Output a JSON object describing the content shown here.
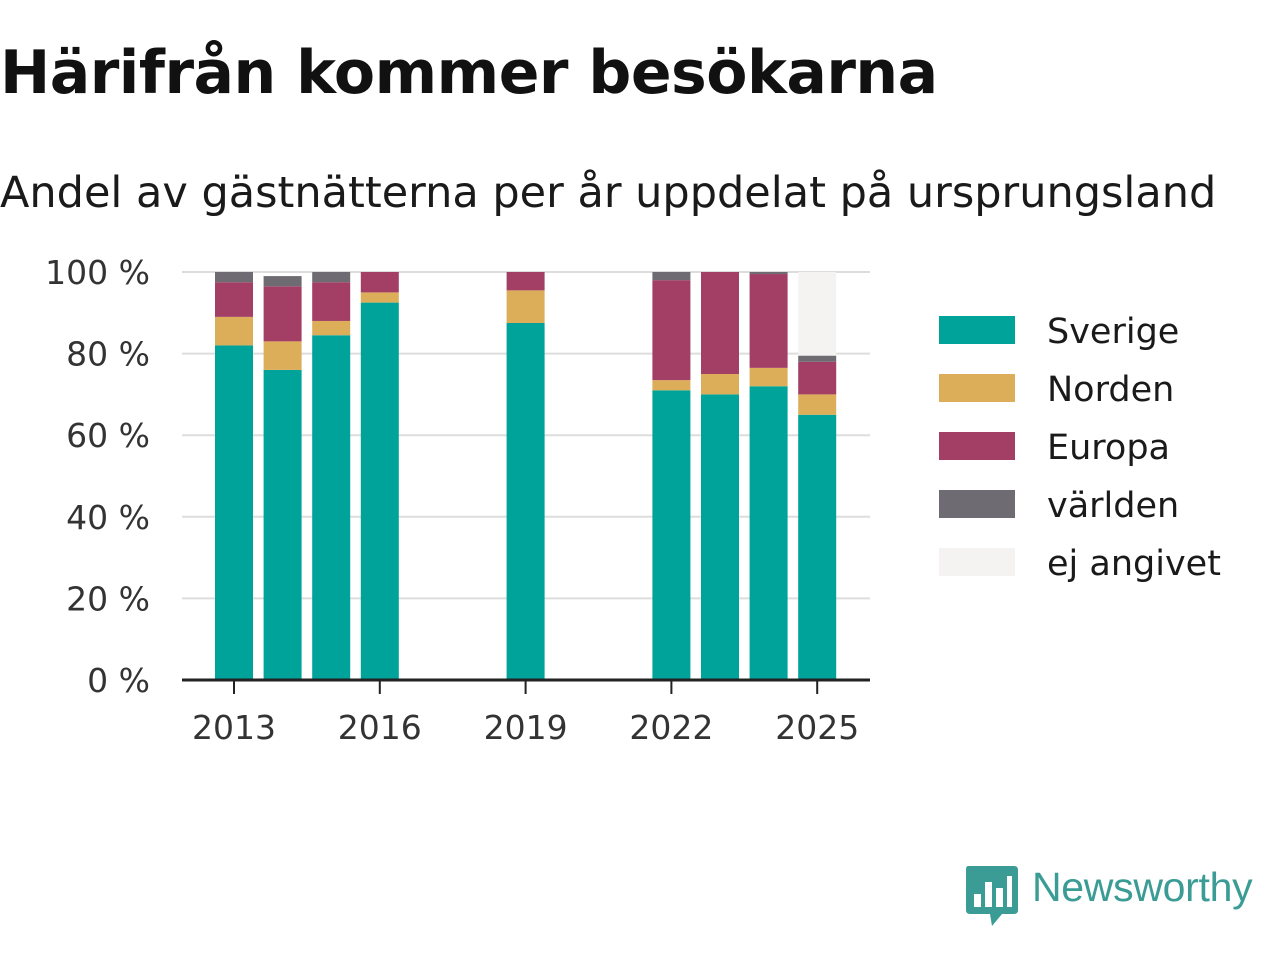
{
  "chart_data": {
    "type": "bar",
    "stacked": true,
    "title": "Härifrån kommer besökarna",
    "subtitle": "Andel av gästnätterna per år uppdelat på ursprungsland",
    "categories": [
      "2013",
      "2014",
      "2015",
      "2016",
      "2017",
      "2018",
      "2019",
      "2020",
      "2021",
      "2022",
      "2023",
      "2024",
      "2025"
    ],
    "x_tick_labels": [
      "2013",
      "2016",
      "2019",
      "2022",
      "2025"
    ],
    "y_tick_labels": [
      "0 %",
      "20 %",
      "40 %",
      "60 %",
      "80 %",
      "100 %"
    ],
    "y_ticks": [
      0,
      20,
      40,
      60,
      80,
      100
    ],
    "ylim": [
      0,
      100
    ],
    "grid": true,
    "legend_position": "right",
    "series": [
      {
        "name": "Sverige",
        "color": "#00a39a",
        "values": [
          82,
          76,
          84.5,
          92.5,
          null,
          null,
          87.5,
          null,
          null,
          71,
          70,
          72,
          65
        ]
      },
      {
        "name": "Norden",
        "color": "#dcae5a",
        "values": [
          7,
          7,
          3.5,
          2.5,
          null,
          null,
          8,
          null,
          null,
          2.5,
          5,
          4.5,
          5
        ]
      },
      {
        "name": "Europa",
        "color": "#a33f65",
        "values": [
          8.5,
          13.5,
          9.5,
          5,
          null,
          null,
          4.5,
          null,
          null,
          24.5,
          25,
          23,
          8
        ]
      },
      {
        "name": "världen",
        "color": "#6e6c72",
        "values": [
          2.5,
          2.5,
          2.5,
          0,
          null,
          null,
          0,
          null,
          null,
          2,
          0,
          0.5,
          1.5
        ]
      },
      {
        "name": "ej angivet",
        "color": "#f4f3f1",
        "values": [
          0,
          0,
          0,
          0,
          null,
          null,
          0,
          null,
          null,
          0,
          0,
          0,
          20.5
        ]
      }
    ]
  },
  "branding": {
    "logo_text": "Newsworthy",
    "logo_color": "#3a9c94",
    "icon": "newsworthy-logo-icon"
  }
}
